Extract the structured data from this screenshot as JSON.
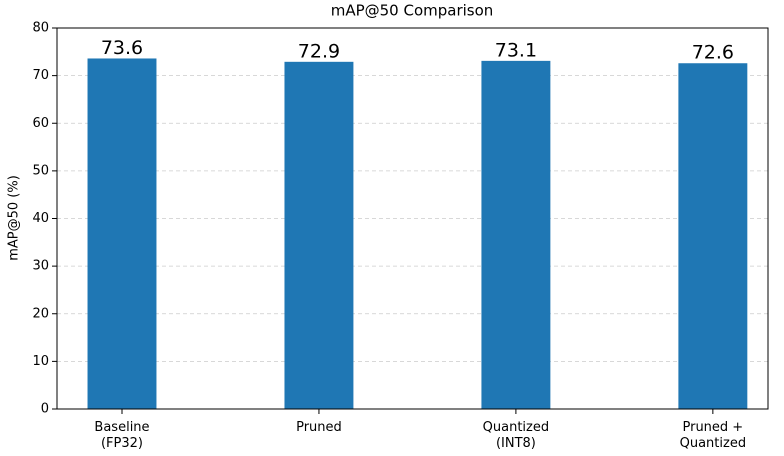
{
  "chart_data": {
    "type": "bar",
    "title": "mAP@50 Comparison",
    "y_label": "mAP@50 (%)",
    "categories": [
      "Baseline\n(FP32)",
      "Pruned",
      "Quantized\n(INT8)",
      "Pruned +\nQuantized"
    ],
    "values": [
      73.6,
      72.9,
      73.1,
      72.6
    ],
    "color": "#1f77b4",
    "ylim": [
      0,
      80
    ],
    "yticks": [
      0,
      10,
      20,
      30,
      40,
      50,
      60,
      70,
      80
    ],
    "grid": true
  }
}
